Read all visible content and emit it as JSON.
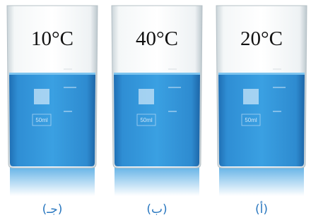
{
  "beakers": [
    {
      "temperature": "10°C",
      "label": "(جـ)",
      "volume": "50ml"
    },
    {
      "temperature": "40°C",
      "label": "(ب)",
      "volume": "50ml"
    },
    {
      "temperature": "20°C",
      "label": "(أ)",
      "volume": "50ml"
    }
  ]
}
